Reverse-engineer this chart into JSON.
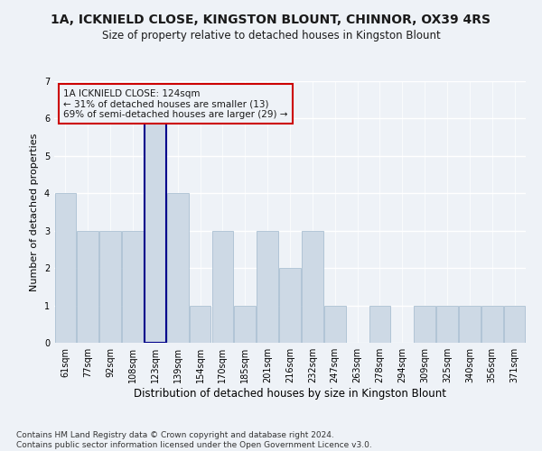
{
  "title1": "1A, ICKNIELD CLOSE, KINGSTON BLOUNT, CHINNOR, OX39 4RS",
  "title2": "Size of property relative to detached houses in Kingston Blount",
  "xlabel": "Distribution of detached houses by size in Kingston Blount",
  "ylabel": "Number of detached properties",
  "categories": [
    "61sqm",
    "77sqm",
    "92sqm",
    "108sqm",
    "123sqm",
    "139sqm",
    "154sqm",
    "170sqm",
    "185sqm",
    "201sqm",
    "216sqm",
    "232sqm",
    "247sqm",
    "263sqm",
    "278sqm",
    "294sqm",
    "309sqm",
    "325sqm",
    "340sqm",
    "356sqm",
    "371sqm"
  ],
  "values": [
    4,
    3,
    3,
    3,
    6,
    4,
    1,
    3,
    1,
    3,
    2,
    3,
    1,
    0,
    1,
    0,
    1,
    1,
    1,
    1,
    1
  ],
  "bar_color": "#cdd9e5",
  "bar_edge_color": "#a0b8cc",
  "highlight_bar_index": 4,
  "highlight_bar_edge_color": "#00008b",
  "annotation_text": "1A ICKNIELD CLOSE: 124sqm\n← 31% of detached houses are smaller (13)\n69% of semi-detached houses are larger (29) →",
  "annotation_box_edge_color": "#cc0000",
  "footer_text": "Contains HM Land Registry data © Crown copyright and database right 2024.\nContains public sector information licensed under the Open Government Licence v3.0.",
  "ylim": [
    0,
    7
  ],
  "yticks": [
    0,
    1,
    2,
    3,
    4,
    5,
    6,
    7
  ],
  "background_color": "#eef2f7",
  "grid_color": "#ffffff",
  "title1_fontsize": 10,
  "title2_fontsize": 8.5,
  "xlabel_fontsize": 8.5,
  "ylabel_fontsize": 8,
  "tick_fontsize": 7,
  "annotation_fontsize": 7.5,
  "footer_fontsize": 6.5
}
